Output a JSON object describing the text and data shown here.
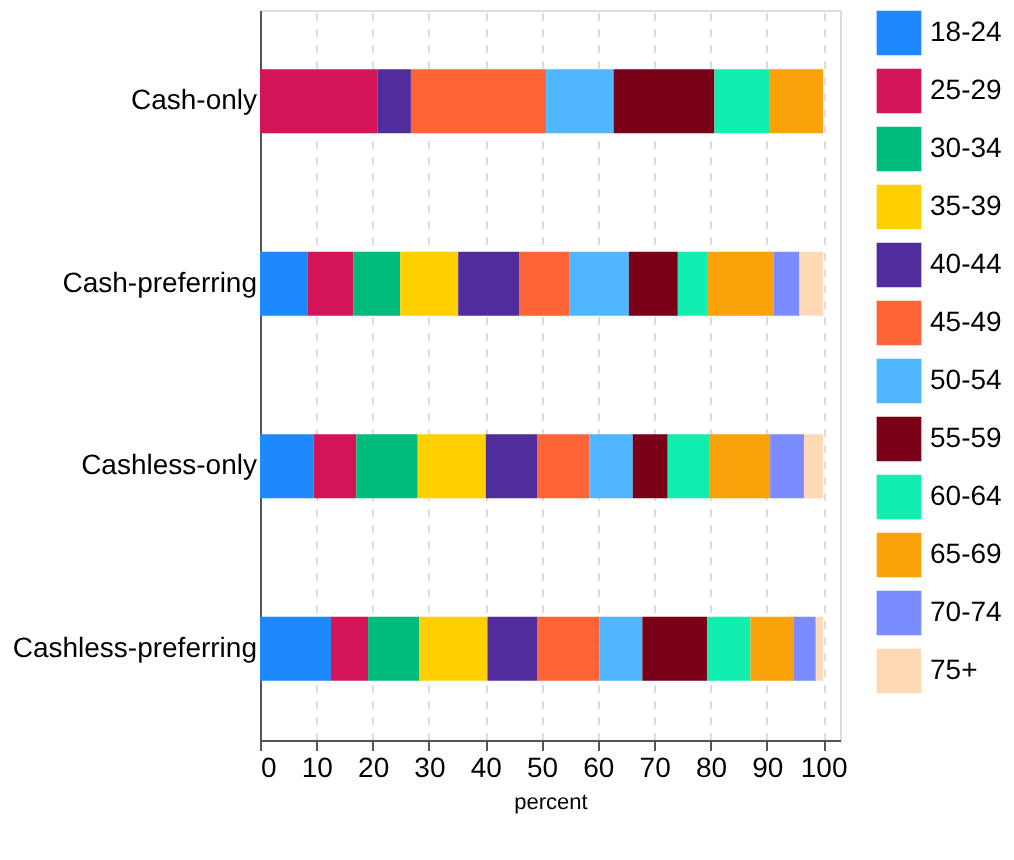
{
  "chart_data": {
    "type": "bar",
    "orientation": "horizontal",
    "stacked": true,
    "xlabel": "percent",
    "categories": [
      "Cash-only",
      "Cash-preferring",
      "Cashless-only",
      "Cashless-preferring"
    ],
    "xlim": [
      0,
      103
    ],
    "xticks": [
      0,
      10,
      20,
      30,
      40,
      50,
      60,
      70,
      80,
      90,
      100
    ],
    "grid": "x",
    "legend": "right",
    "series": [
      {
        "name": "18-24",
        "color": "#1e88ff",
        "values": [
          null,
          8.5,
          9.5,
          12.6
        ]
      },
      {
        "name": "25-29",
        "color": "#d41459",
        "values": [
          20.9,
          8.1,
          7.6,
          6.6
        ]
      },
      {
        "name": "30-34",
        "color": "#00bb7e",
        "values": [
          null,
          8.3,
          10.9,
          9.1
        ]
      },
      {
        "name": "35-39",
        "color": "#ffd000",
        "values": [
          null,
          10.3,
          12.1,
          12.1
        ]
      },
      {
        "name": "40-44",
        "color": "#512d9b",
        "values": [
          5.9,
          10.8,
          9.1,
          8.9
        ]
      },
      {
        "name": "45-49",
        "color": "#ff6437",
        "values": [
          24.0,
          9.0,
          9.3,
          11.0
        ]
      },
      {
        "name": "50-54",
        "color": "#4fb6ff",
        "values": [
          12.0,
          10.5,
          7.7,
          7.6
        ]
      },
      {
        "name": "55-59",
        "color": "#7a0018",
        "values": [
          17.9,
          8.7,
          6.2,
          11.5
        ]
      },
      {
        "name": "60-64",
        "color": "#12eeb0",
        "values": [
          9.7,
          5.2,
          7.5,
          7.7
        ]
      },
      {
        "name": "65-69",
        "color": "#f9a20a",
        "values": [
          9.6,
          11.8,
          10.7,
          7.6
        ]
      },
      {
        "name": "70-74",
        "color": "#7a8cff",
        "values": [
          null,
          4.6,
          6.0,
          4.0
        ]
      },
      {
        "name": "75+",
        "color": "#ffd8b4",
        "values": [
          null,
          4.2,
          3.4,
          1.3
        ]
      }
    ]
  }
}
